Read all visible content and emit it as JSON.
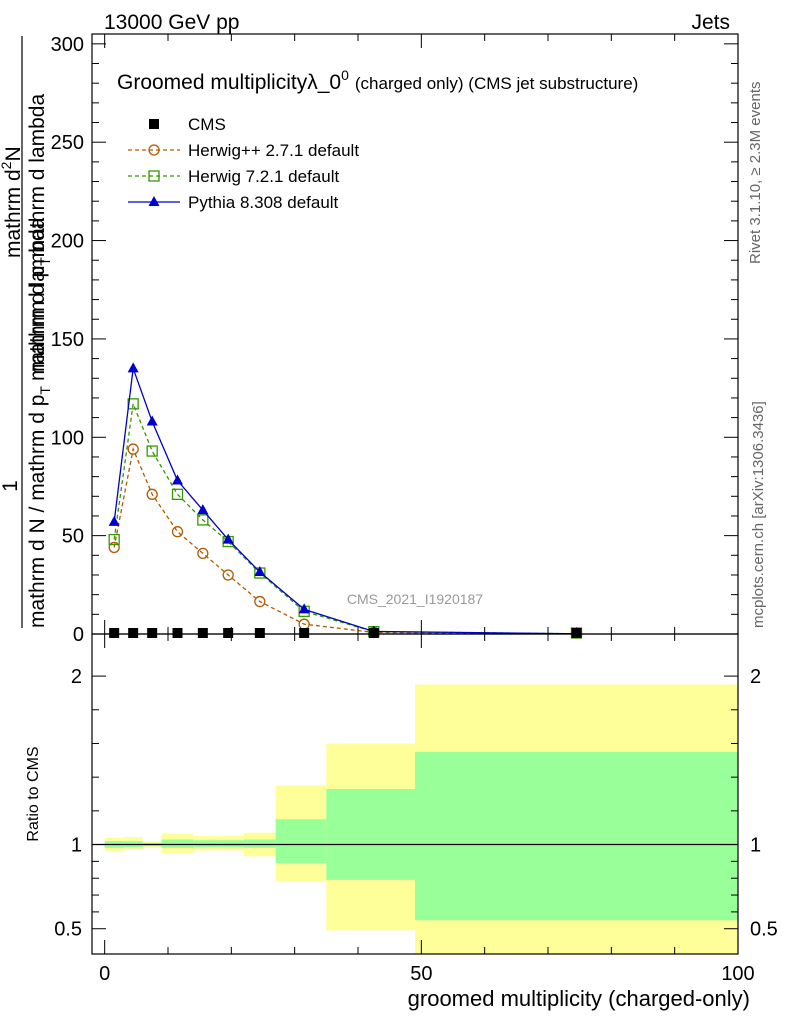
{
  "header": {
    "left": "13000 GeV pp",
    "right": "Jets"
  },
  "sidebar": {
    "version": "Rivet 3.1.10, ≥ 2.3M events",
    "source": "mcplots.cern.ch [arXiv:1306.3436]"
  },
  "chart_data": [
    {
      "type": "line",
      "title": "Groomed multiplicityλ_0",
      "title_sup": "0",
      "title_suffix": "(charged only) (CMS jet substructure)",
      "watermark": "CMS_2021_I1920187",
      "ylabel": {
        "numerator": "1",
        "denominator": "mathrm d N / mathrm d p",
        "denominator_sub": "T",
        "denominator_tail": "mathrm d lambda",
        "side_top": "mathrm d",
        "side_top_sup": "2",
        "side_top_tail": "N",
        "side_bottom": "mathrm d p",
        "side_bottom_sub": "T",
        "side_bottom_tail": "mathrm d lambda"
      },
      "xlim": [
        -2,
        100
      ],
      "ylim": [
        0,
        305
      ],
      "yticks": [
        "0",
        "50",
        "100",
        "150",
        "200",
        "250",
        "300"
      ],
      "legend_position": "top-left",
      "series": [
        {
          "name": "CMS",
          "color": "#000000",
          "marker": "square-filled",
          "line": "none",
          "x": [
            1.5,
            4.5,
            7.5,
            11.5,
            15.5,
            19.5,
            24.5,
            31.5,
            42.5,
            74.5
          ],
          "y": [
            0.3,
            0.3,
            0.3,
            0.3,
            0.3,
            0.3,
            0.3,
            0.3,
            0.2,
            0.1
          ]
        },
        {
          "name": "Herwig++ 2.7.1 default",
          "color": "#b35900",
          "marker": "circle-open",
          "line": "dashed",
          "x": [
            1.5,
            4.5,
            7.5,
            11.5,
            15.5,
            19.5,
            24.5,
            31.5,
            42.5,
            74.5
          ],
          "y": [
            44,
            94,
            71,
            52,
            41,
            30,
            16.5,
            5,
            0.8,
            0.1
          ]
        },
        {
          "name": "Herwig 7.2.1 default",
          "color": "#339900",
          "marker": "square-open",
          "line": "dashed",
          "x": [
            1.5,
            4.5,
            7.5,
            11.5,
            15.5,
            19.5,
            24.5,
            31.5,
            42.5,
            74.5
          ],
          "y": [
            48,
            117,
            93,
            71,
            58,
            47,
            31,
            11.5,
            1.2,
            0.1
          ]
        },
        {
          "name": "Pythia 8.308 default",
          "color": "#0000cc",
          "marker": "triangle-filled",
          "line": "solid",
          "x": [
            1.5,
            4.5,
            7.5,
            11.5,
            15.5,
            19.5,
            24.5,
            31.5,
            42.5,
            74.5
          ],
          "y": [
            57,
            135,
            108,
            78,
            63,
            48,
            31.5,
            12.5,
            1.3,
            0.1
          ]
        }
      ]
    },
    {
      "type": "area",
      "ylabel": "Ratio to CMS",
      "xlabel": "groomed multiplicity (charged-only)",
      "xlim": [
        -2,
        100
      ],
      "ylim": [
        0.35,
        2.25
      ],
      "yticks": [
        "0.5",
        "1",
        "2"
      ],
      "xticks": [
        "0",
        "50",
        "100"
      ],
      "reference": 1,
      "bands": {
        "bin_edges": [
          0,
          3,
          6,
          9,
          14,
          18,
          22,
          27,
          35,
          49,
          100
        ],
        "stat": {
          "color": "#99ff99",
          "low": [
            0.98,
            0.985,
            0.99,
            0.98,
            0.985,
            0.985,
            0.98,
            0.89,
            0.79,
            0.55
          ],
          "high": [
            1.02,
            1.02,
            1.01,
            1.03,
            1.025,
            1.025,
            1.03,
            1.15,
            1.33,
            1.55
          ]
        },
        "total": {
          "color": "#ffff99",
          "low": [
            0.96,
            0.97,
            0.985,
            0.95,
            0.965,
            0.965,
            0.93,
            0.78,
            0.49,
            0.35
          ],
          "high": [
            1.04,
            1.045,
            1.02,
            1.065,
            1.05,
            1.05,
            1.07,
            1.35,
            1.6,
            1.95
          ]
        }
      }
    }
  ]
}
